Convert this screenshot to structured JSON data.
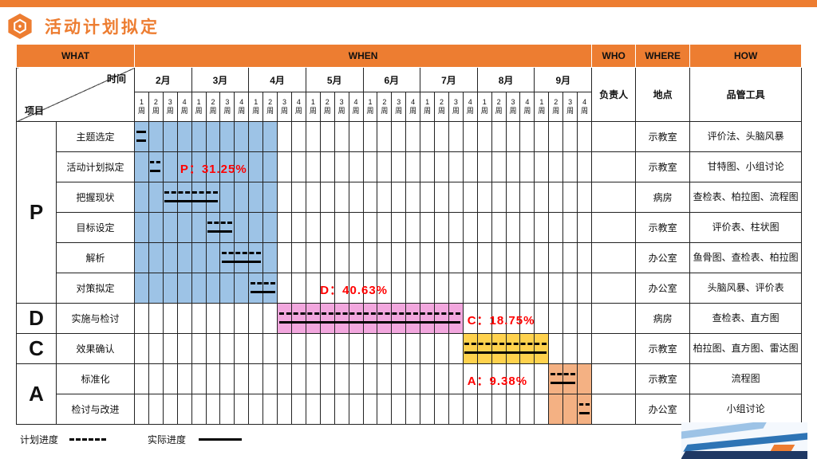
{
  "title": "活动计划拟定",
  "header_row": {
    "what": "WHAT",
    "when": "WHEN",
    "who": "WHO",
    "where": "WHERE",
    "how": "HOW"
  },
  "corner_header": {
    "time_label": "时间",
    "project_label": "项目"
  },
  "column_labels": {
    "who": "负责人",
    "where": "地点",
    "how": "品管工具"
  },
  "chart_data": {
    "type": "table",
    "subtype": "gantt",
    "title": "活动计划拟定",
    "months": [
      "2月",
      "3月",
      "4月",
      "5月",
      "6月",
      "7月",
      "8月",
      "9月"
    ],
    "weeks_per_month": 4,
    "total_weeks": 32,
    "week_numbers": [
      "1",
      "2",
      "3",
      "4"
    ],
    "week_suffix": "周",
    "phases": [
      {
        "label": "P",
        "task_count": 6,
        "progress": "31.25%"
      },
      {
        "label": "D",
        "task_count": 1,
        "progress": "40.63%"
      },
      {
        "label": "C",
        "task_count": 1,
        "progress": "18.75%"
      },
      {
        "label": "A",
        "task_count": 2,
        "progress": "9.38%"
      }
    ],
    "tasks": [
      {
        "task": "主题选定",
        "who": "",
        "where": "示教室",
        "tools": "评价法、头脑风暴",
        "planned_weeks": [
          1,
          1
        ],
        "actual_weeks": [
          1,
          1
        ]
      },
      {
        "task": "活动计划拟定",
        "who": "",
        "where": "示教室",
        "tools": "甘特图、小组讨论",
        "planned_weeks": [
          2,
          2
        ],
        "actual_weeks": [
          2,
          2
        ]
      },
      {
        "task": "把握现状",
        "who": "",
        "where": "病房",
        "tools": "查检表、柏拉图、流程图",
        "planned_weeks": [
          3,
          6
        ],
        "actual_weeks": [
          3,
          6
        ]
      },
      {
        "task": "目标设定",
        "who": "",
        "where": "示教室",
        "tools": "评价表、柱状图",
        "planned_weeks": [
          6,
          7
        ],
        "actual_weeks": [
          6,
          7
        ]
      },
      {
        "task": "解析",
        "who": "",
        "where": "办公室",
        "tools": "鱼骨图、查检表、柏拉图",
        "planned_weeks": [
          7,
          9
        ],
        "actual_weeks": [
          7,
          9
        ]
      },
      {
        "task": "对策拟定",
        "who": "",
        "where": "办公室",
        "tools": "头脑风暴、评价表",
        "planned_weeks": [
          9,
          10
        ],
        "actual_weeks": [
          9,
          10
        ]
      },
      {
        "task": "实施与检讨",
        "who": "",
        "where": "病房",
        "tools": "查检表、直方图",
        "planned_weeks": [
          11,
          23
        ],
        "actual_weeks": [
          11,
          23
        ]
      },
      {
        "task": "效果确认",
        "who": "",
        "where": "示教室",
        "tools": "柏拉图、直方图、雷达图",
        "planned_weeks": [
          24,
          29
        ],
        "actual_weeks": [
          24,
          29
        ]
      },
      {
        "task": "标准化",
        "who": "",
        "where": "示教室",
        "tools": "流程图",
        "planned_weeks": [
          30,
          31
        ],
        "actual_weeks": [
          30,
          31
        ]
      },
      {
        "task": "检讨与改进",
        "who": "",
        "where": "办公室",
        "tools": "小组讨论",
        "planned_weeks": [
          32,
          32
        ],
        "actual_weeks": [
          32,
          32
        ]
      }
    ],
    "highlights": [
      {
        "row_start": 0,
        "row_end": 5,
        "week_start": 1,
        "week_end": 10,
        "color": "#9DC3E6"
      },
      {
        "row_start": 6,
        "row_end": 6,
        "week_start": 11,
        "week_end": 23,
        "color": "#F2A7DE"
      },
      {
        "row_start": 7,
        "row_end": 7,
        "week_start": 24,
        "week_end": 29,
        "color": "#FFD24D"
      },
      {
        "row_start": 8,
        "row_end": 9,
        "week_start": 30,
        "week_end": 32,
        "color": "#F4B183"
      }
    ],
    "progress_labels": [
      {
        "text": "P：31.25%",
        "row": 1,
        "week": 4.2
      },
      {
        "text": "D：40.63%",
        "row": 5,
        "week": 14
      },
      {
        "text": "C：18.75%",
        "row": 6,
        "week": 24.3
      },
      {
        "text": "A：9.38%",
        "row": 8,
        "week": 24.3
      }
    ],
    "legend": {
      "dashed": "计划进度",
      "solid": "实际进度"
    }
  },
  "colors": {
    "accent_orange": "#ED7D31",
    "highlight_blue": "#9DC3E6",
    "highlight_pink": "#F2A7DE",
    "highlight_yellow": "#FFD24D",
    "highlight_orange": "#F4B183",
    "progress_red": "#FF0000"
  }
}
